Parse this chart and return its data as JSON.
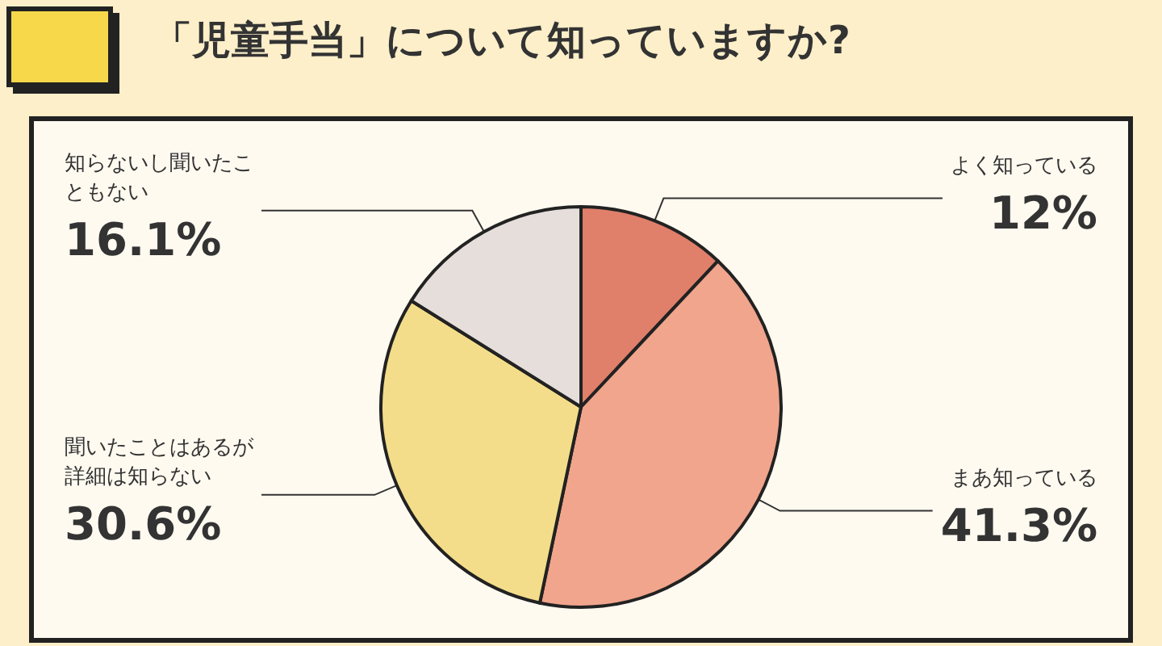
{
  "chart_data": {
    "type": "pie",
    "title": "「児童手当」について知っていますか?",
    "categories": [
      "よく知っている",
      "まあ知っている",
      "聞いたことはあるが詳細は知らない",
      "知らないし聞いたこともない"
    ],
    "values": [
      12,
      41.3,
      30.6,
      16.1
    ],
    "value_labels": [
      "12%",
      "41.3%",
      "30.6%",
      "16.1%"
    ],
    "colors": [
      "#e07f6a",
      "#f0a58c",
      "#f4dd8a",
      "#e6dedb"
    ],
    "legend": false
  }
}
